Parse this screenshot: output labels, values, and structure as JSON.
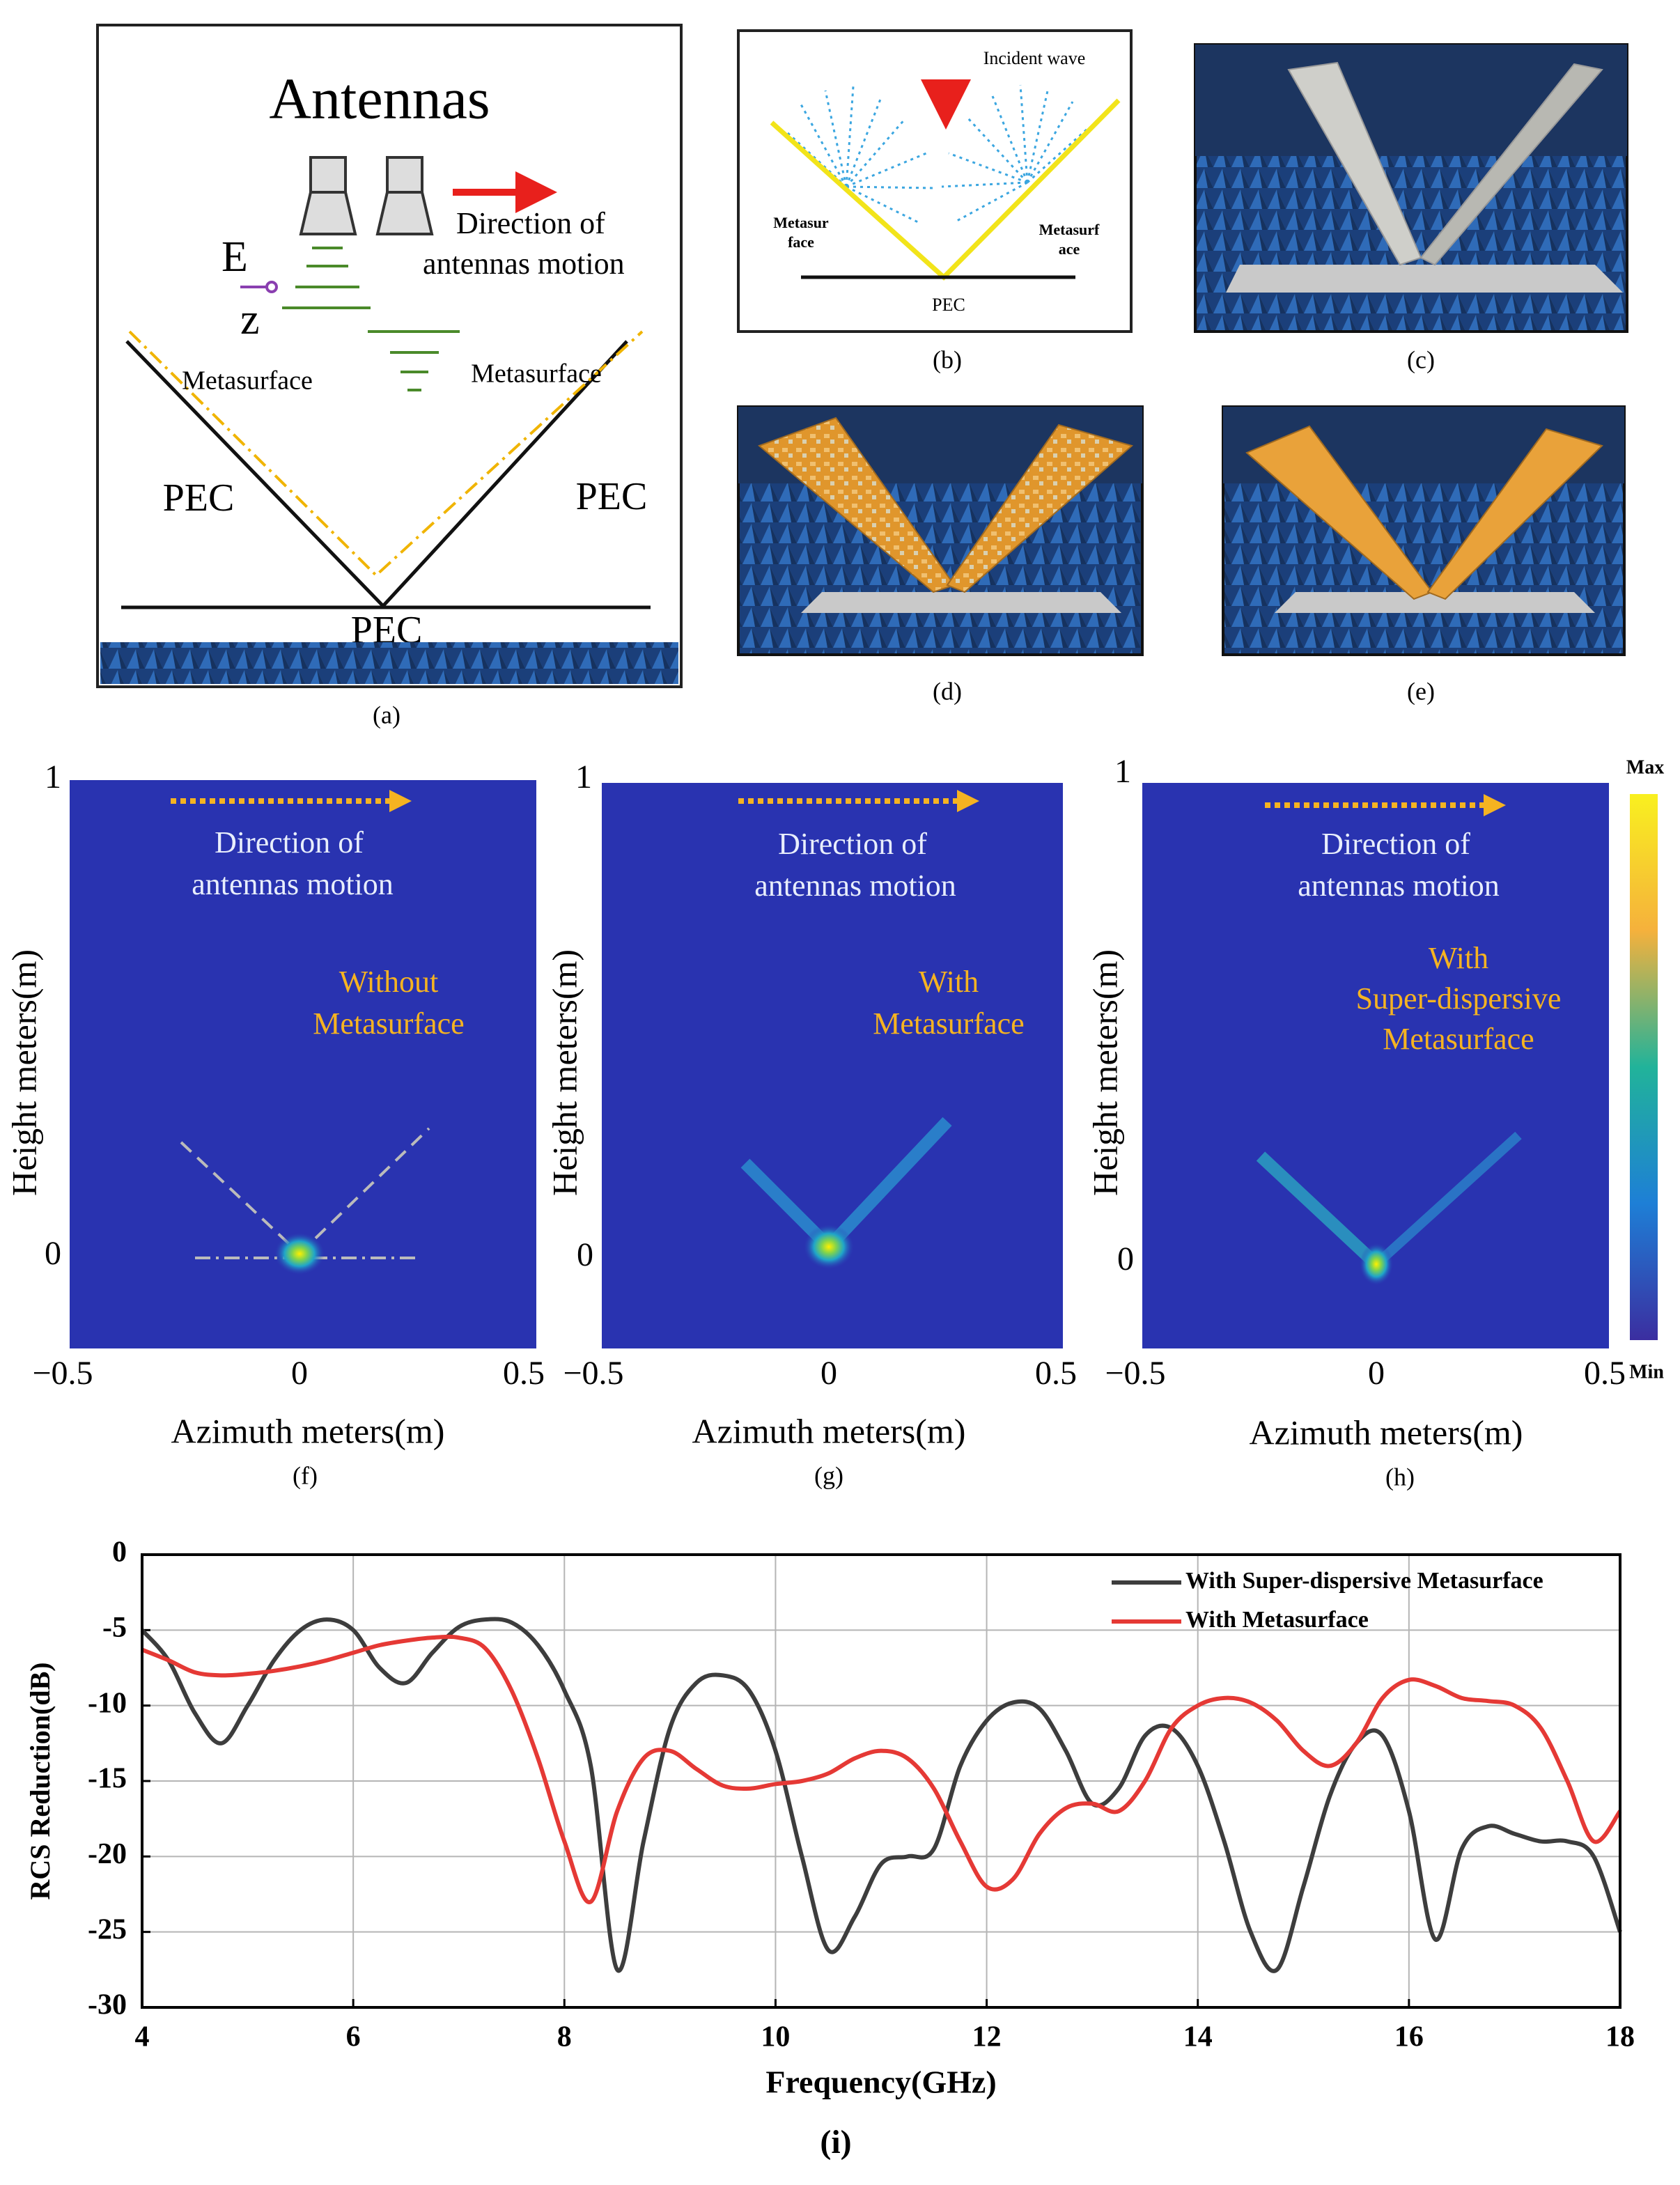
{
  "panel_a": {
    "title": "Antennas",
    "motion": [
      "Direction of",
      "antennas motion"
    ],
    "field": "E",
    "axis": "z",
    "metasurface_left": "Metasurface",
    "metasurface_right": "Metasurface",
    "pec_left": "PEC",
    "pec_right": "PEC",
    "pec_bottom": "PEC",
    "caption": "(a)"
  },
  "panel_b": {
    "incident": "Incident wave",
    "meta_left": [
      "Metasur",
      "face"
    ],
    "meta_right": [
      "Metasurf",
      "ace"
    ],
    "pec": "PEC",
    "caption": "(b)"
  },
  "photos": [
    {
      "caption": "(c)"
    },
    {
      "caption": "(d)"
    },
    {
      "caption": "(e)"
    }
  ],
  "heatmaps": [
    {
      "y_top": "1",
      "y_zero": "0",
      "xticks": [
        "−0.5",
        "0",
        "0.5"
      ],
      "ylabel": "Height meters(m)",
      "xlabel": "Azimuth meters(m)",
      "motion": [
        "Direction of",
        "antennas motion"
      ],
      "note": [
        "Without",
        "Metasurface"
      ],
      "caption": "(f)"
    },
    {
      "y_top": "1",
      "y_zero": "0",
      "xticks": [
        "−0.5",
        "0",
        "0.5"
      ],
      "ylabel": "Height meters(m)",
      "xlabel": "Azimuth meters(m)",
      "motion": [
        "Direction of",
        "antennas motion"
      ],
      "note": [
        "With",
        "Metasurface"
      ],
      "caption": "(g)"
    },
    {
      "y_top": "1",
      "y_zero": "0",
      "xticks": [
        "−0.5",
        "0",
        "0.5"
      ],
      "ylabel": "Height meters(m)",
      "xlabel": "Azimuth meters(m)",
      "motion": [
        "Direction of",
        "antennas motion"
      ],
      "note": [
        "With",
        "Super-dispersive",
        "Metasurface"
      ],
      "caption": "(h)"
    }
  ],
  "colorbar": {
    "max": "Max",
    "min": "Min"
  },
  "chart_data": {
    "type": "line",
    "xlabel": "Frequency(GHz)",
    "ylabel": "RCS Reduction(dB)",
    "caption": "(i)",
    "xlim": [
      4,
      18
    ],
    "xticks": [
      4,
      6,
      8,
      10,
      12,
      14,
      16,
      18
    ],
    "ylim": [
      -30,
      0
    ],
    "yticks": [
      -30,
      -25,
      -20,
      -15,
      -10,
      -5,
      0
    ],
    "grid": true,
    "legend": "top-right",
    "x": [
      4,
      4.25,
      4.5,
      4.75,
      5,
      5.25,
      5.5,
      5.75,
      6,
      6.25,
      6.5,
      6.75,
      7,
      7.25,
      7.5,
      7.75,
      8,
      8.25,
      8.5,
      8.75,
      9,
      9.25,
      9.5,
      9.75,
      10,
      10.25,
      10.5,
      10.75,
      11,
      11.25,
      11.5,
      11.75,
      12,
      12.25,
      12.5,
      12.75,
      13,
      13.25,
      13.5,
      13.75,
      14,
      14.25,
      14.5,
      14.75,
      15,
      15.25,
      15.5,
      15.75,
      16,
      16.25,
      16.5,
      16.75,
      17,
      17.25,
      17.5,
      17.75,
      18
    ],
    "series": [
      {
        "name": "With Super-dispersive Metasurface",
        "color": "#3d3d3d",
        "values": [
          -5,
          -7,
          -10.5,
          -12.5,
          -10,
          -7,
          -5,
          -4.3,
          -5,
          -7.5,
          -8.5,
          -6.5,
          -4.8,
          -4.3,
          -4.5,
          -6,
          -9,
          -14,
          -27.5,
          -19,
          -11.5,
          -8.5,
          -8,
          -9,
          -13,
          -20,
          -26.2,
          -24,
          -20.5,
          -20,
          -19.5,
          -14,
          -11,
          -9.8,
          -10.2,
          -13,
          -16.5,
          -15.5,
          -12,
          -11.5,
          -14,
          -19,
          -25,
          -27.5,
          -22,
          -16,
          -12.5,
          -12,
          -17,
          -25.5,
          -19.5,
          -18,
          -18.5,
          -19,
          -19,
          -20,
          -25
        ]
      },
      {
        "name": "With Metasurface",
        "color": "#e53935",
        "values": [
          -6.3,
          -7,
          -7.8,
          -8,
          -7.9,
          -7.7,
          -7.4,
          -7,
          -6.5,
          -6,
          -5.7,
          -5.5,
          -5.5,
          -6.2,
          -9,
          -13.5,
          -19,
          -23,
          -17,
          -13.5,
          -13,
          -14.2,
          -15.3,
          -15.5,
          -15.2,
          -15,
          -14.5,
          -13.5,
          -13,
          -13.5,
          -15.5,
          -19,
          -22,
          -21.5,
          -18.5,
          -16.8,
          -16.5,
          -17,
          -15,
          -11.5,
          -10,
          -9.5,
          -9.8,
          -11,
          -13,
          -14,
          -12.5,
          -9.5,
          -8.3,
          -8.7,
          -9.5,
          -9.7,
          -10,
          -11.5,
          -15,
          -19,
          -17
        ]
      }
    ]
  }
}
